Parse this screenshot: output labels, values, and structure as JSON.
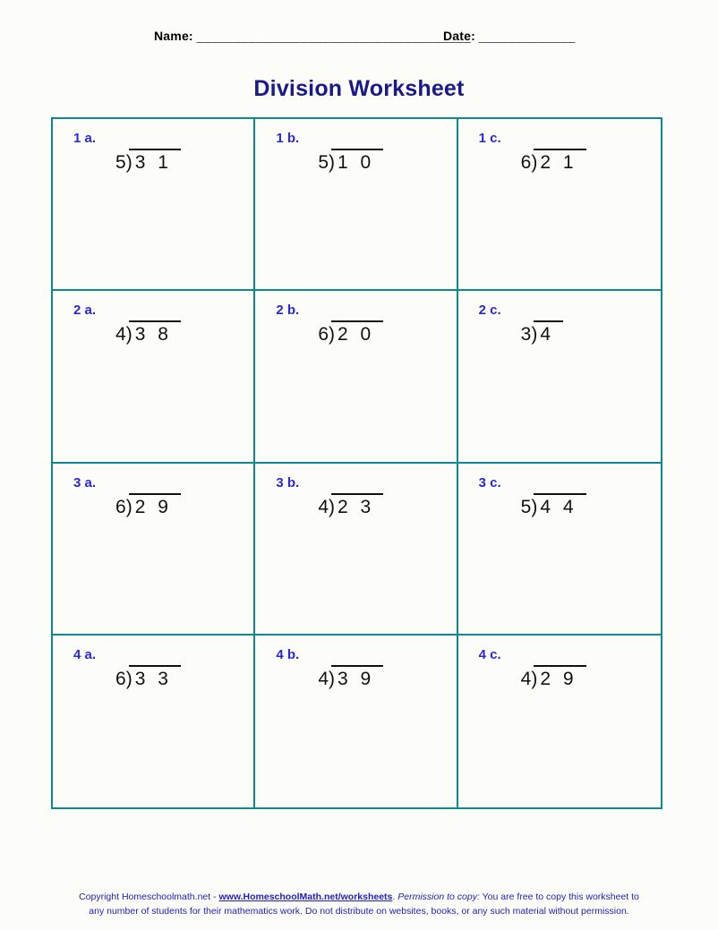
{
  "colors": {
    "background": "#fcfdf8",
    "grid_border": "#0c8a8a",
    "title_navy": "#19198c",
    "label_blue": "#2828d8",
    "footer_blue": "#2121bd",
    "ink": "#111111"
  },
  "header": {
    "name_label": "Name:",
    "name_blank": "_____________________________________",
    "date_label": "Date:",
    "date_blank": "_____________"
  },
  "title": "Division Worksheet",
  "notation": {
    "bracket": ")"
  },
  "problems": [
    {
      "label": "1 a.",
      "divisor": "5",
      "dividend": "3 1"
    },
    {
      "label": "1 b.",
      "divisor": "5",
      "dividend": "1 0"
    },
    {
      "label": "1 c.",
      "divisor": "6",
      "dividend": "2 1"
    },
    {
      "label": "2 a.",
      "divisor": "4",
      "dividend": "3 8"
    },
    {
      "label": "2 b.",
      "divisor": "6",
      "dividend": "2 0"
    },
    {
      "label": "2 c.",
      "divisor": "3",
      "dividend": "4"
    },
    {
      "label": "3 a.",
      "divisor": "6",
      "dividend": "2 9"
    },
    {
      "label": "3 b.",
      "divisor": "4",
      "dividend": "2 3"
    },
    {
      "label": "3 c.",
      "divisor": "5",
      "dividend": "4 4"
    },
    {
      "label": "4 a.",
      "divisor": "6",
      "dividend": "3 3"
    },
    {
      "label": "4 b.",
      "divisor": "4",
      "dividend": "3 9"
    },
    {
      "label": "4 c.",
      "divisor": "4",
      "dividend": "2 9"
    }
  ],
  "footer": {
    "prefix": "Copyright Homeschoolmath.net - ",
    "link_text": "www.HomeschoolMath.net/worksheets",
    "separator": ".  ",
    "permission_label": "Permission to copy:",
    "permission_text": " You are free to copy this worksheet to any number of students for their mathematics work. Do not distribute on websites, books, or any such material without permission."
  }
}
